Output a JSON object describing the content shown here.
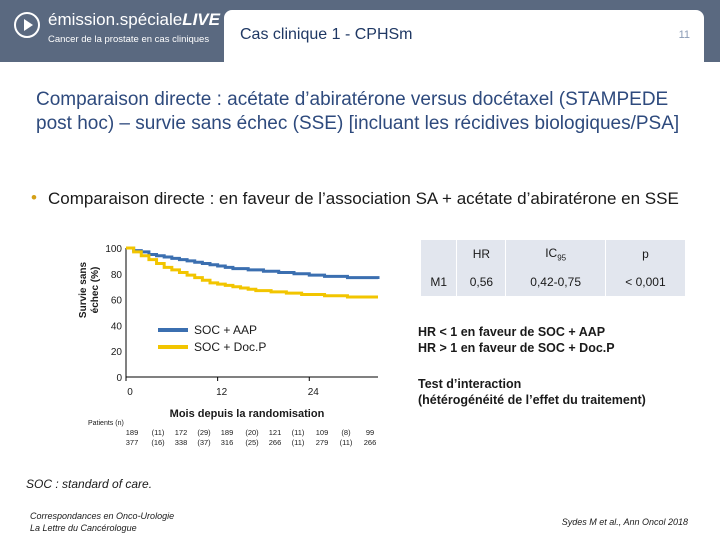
{
  "header": {
    "logo_name_light": "émission.spéciale",
    "logo_name_bold": "LIVE",
    "logo_subtitle": "Cancer de la prostate en cas cliniques",
    "case_title": "Cas clinique 1 - CPHSm",
    "page_number": "11",
    "brand_color": "#5a6980"
  },
  "slide": {
    "title": "Comparaison directe : acétate d’abiratérone versus docétaxel (STAMPEDE post hoc) – survie sans échec (SSE) [incluant les récidives biologiques/PSA]",
    "bullet": "Comparaison directe : en faveur de l’association SA + acétate d’abiratérone en SSE"
  },
  "chart_data": {
    "type": "line",
    "ylabel_line1": "Survie sans",
    "ylabel_line2": "échec (%)",
    "xlabel": "Mois depuis la randomisation",
    "y_ticks": [
      "0",
      "20",
      "40",
      "60",
      "80",
      "100"
    ],
    "x_ticks": [
      "0",
      "12",
      "24"
    ],
    "ylim": [
      0,
      100
    ],
    "xlim": [
      0,
      33
    ],
    "series": [
      {
        "name": "SOC + AAP",
        "color": "#3b6fb0",
        "x": [
          0,
          1,
          2,
          3,
          4,
          5,
          6,
          7,
          8,
          9,
          10,
          11,
          12,
          13,
          14,
          15,
          16,
          17,
          18,
          19,
          20,
          21,
          22,
          23,
          24,
          25,
          26,
          27,
          28,
          29,
          30,
          31,
          32,
          33
        ],
        "y": [
          100,
          98,
          97,
          95,
          94,
          93,
          92,
          91,
          90,
          89,
          88,
          87,
          86,
          85,
          84,
          84,
          83,
          83,
          82,
          82,
          81,
          81,
          80,
          80,
          79,
          79,
          78,
          78,
          78,
          77,
          77,
          77,
          77,
          76
        ]
      },
      {
        "name": "SOC + Doc.P",
        "color": "#f2c500",
        "x": [
          0,
          1,
          2,
          3,
          4,
          5,
          6,
          7,
          8,
          9,
          10,
          11,
          12,
          13,
          14,
          15,
          16,
          17,
          18,
          19,
          20,
          21,
          22,
          23,
          24,
          25,
          26,
          27,
          28,
          29,
          30,
          31,
          32,
          33
        ],
        "y": [
          100,
          97,
          94,
          91,
          88,
          85,
          83,
          81,
          79,
          77,
          75,
          73,
          72,
          71,
          70,
          69,
          68,
          67,
          67,
          66,
          66,
          65,
          65,
          64,
          64,
          64,
          63,
          63,
          63,
          62,
          62,
          62,
          62,
          62
        ]
      }
    ],
    "risk_table": {
      "label": "Patients (n)",
      "rows": [
        {
          "values": [
            "189",
            "(11)",
            "172",
            "(29)",
            "189",
            "(20)",
            "121",
            "(11)",
            "109",
            "(8)",
            "99"
          ]
        },
        {
          "values": [
            "377",
            "(16)",
            "338",
            "(37)",
            "316",
            "(25)",
            "266",
            "(11)",
            "279",
            "(11)",
            "266"
          ]
        }
      ]
    }
  },
  "hr_table": {
    "headers": [
      "",
      "HR",
      "IC95",
      "p"
    ],
    "row": {
      "label": "M1",
      "hr": "0,56",
      "ci": "0,42-0,75",
      "p": "< 0,001"
    }
  },
  "notes": {
    "hr_note_1": "HR < 1 en faveur de SOC + AAP",
    "hr_note_2": "HR > 1 en faveur de SOC + Doc.P",
    "test_1": "Test d’interaction",
    "test_2": "(hétérogénéité de l’effet du traitement)",
    "soc": "SOC : standard of care.",
    "source_left_1": "Correspondances en Onco-Urologie",
    "source_left_2": "La Lettre du Cancérologue",
    "source_right": "Sydes M et al., Ann Oncol 2018"
  }
}
